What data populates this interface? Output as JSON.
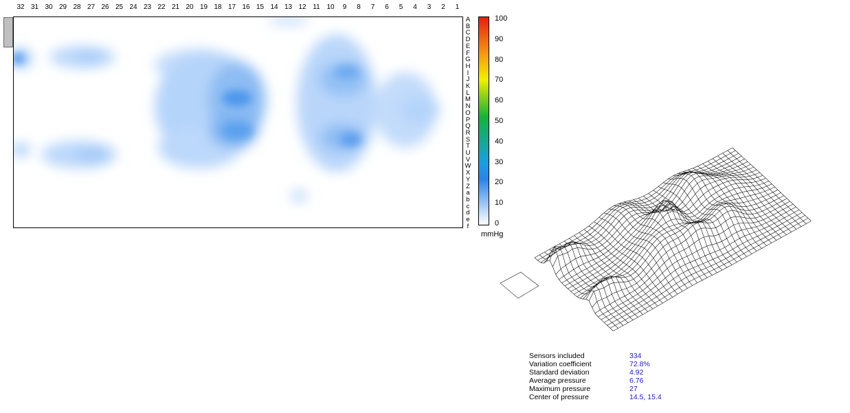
{
  "columns": [
    "32",
    "31",
    "30",
    "29",
    "28",
    "27",
    "26",
    "25",
    "24",
    "23",
    "22",
    "21",
    "20",
    "19",
    "18",
    "17",
    "16",
    "15",
    "14",
    "13",
    "12",
    "11",
    "10",
    "9",
    "8",
    "7",
    "6",
    "5",
    "4",
    "3",
    "2",
    "1"
  ],
  "rows": [
    "A",
    "B",
    "C",
    "D",
    "E",
    "F",
    "G",
    "H",
    "I",
    "J",
    "K",
    "L",
    "M",
    "N",
    "O",
    "P",
    "Q",
    "R",
    "S",
    "T",
    "U",
    "V",
    "W",
    "X",
    "Y",
    "Z",
    "a",
    "b",
    "c",
    "d",
    "e",
    "f"
  ],
  "legend": {
    "ticks": [
      "100",
      "90",
      "80",
      "70",
      "60",
      "50",
      "40",
      "30",
      "20",
      "10",
      "0"
    ],
    "unit": "mmHg",
    "colors": {
      "low": "#ffffff",
      "mid": "#2c83e8",
      "high": "#e62010"
    }
  },
  "stats": [
    {
      "label": "Sensors included",
      "value": "334"
    },
    {
      "label": "Variation coefficient",
      "value": "72.8%"
    },
    {
      "label": "Standard deviation",
      "value": "4.92"
    },
    {
      "label": "Average pressure",
      "value": "6.76"
    },
    {
      "label": "Maximum pressure",
      "value": "27"
    },
    {
      "label": "Center of pressure",
      "value": "14.5, 15.4"
    }
  ]
}
